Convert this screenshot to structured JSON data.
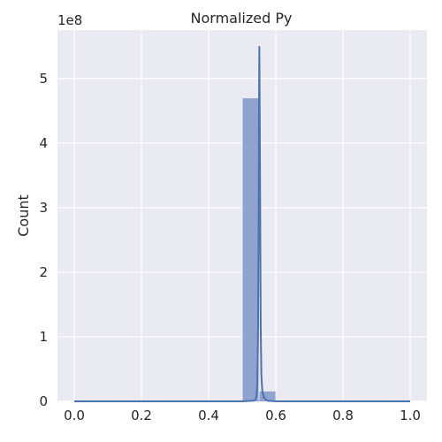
{
  "chart_data": {
    "type": "bar",
    "title": "Normalized Py",
    "xlabel": "",
    "ylabel": "Count",
    "y_offset_label": "1e8",
    "xlim": [
      -0.05,
      1.05
    ],
    "ylim": [
      0,
      5.75
    ],
    "xticks": [
      0.0,
      0.2,
      0.4,
      0.6,
      0.8,
      1.0
    ],
    "xtick_labels": [
      "0.0",
      "0.2",
      "0.4",
      "0.6",
      "0.8",
      "1.0"
    ],
    "yticks": [
      0,
      1,
      2,
      3,
      4,
      5
    ],
    "ytick_labels": [
      "0",
      "1",
      "2",
      "3",
      "4",
      "5"
    ],
    "grid": true,
    "bins": [
      {
        "x0": 0.5,
        "x1": 0.55,
        "value": 4.7
      },
      {
        "x0": 0.55,
        "x1": 0.6,
        "value": 0.16
      }
    ],
    "kde": {
      "x": [
        0.0,
        0.5,
        0.535,
        0.54,
        0.543,
        0.545,
        0.547,
        0.549,
        0.55,
        0.551,
        0.553,
        0.555,
        0.557,
        0.56,
        0.565,
        0.575,
        0.6,
        1.0
      ],
      "y": [
        0.0,
        0.0,
        0.01,
        0.03,
        0.1,
        0.3,
        1.0,
        2.8,
        4.5,
        5.5,
        3.5,
        1.2,
        0.4,
        0.15,
        0.05,
        0.01,
        0.0,
        0.0
      ]
    },
    "bar_color": "#8fa3cf",
    "bar_edge_color": "#eaeaf2",
    "line_color": "#4c72b0"
  },
  "colors": {
    "plot_background": "#eaeaf2",
    "grid": "#ffffff"
  }
}
